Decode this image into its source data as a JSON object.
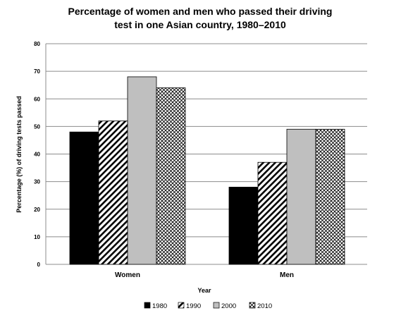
{
  "chart_data": {
    "type": "bar",
    "title_lines": [
      "Percentage of women and men who passed their driving",
      "test in one Asian country, 1980–2010"
    ],
    "xlabel": "Year",
    "ylabel": "Percentage (%) of driving tests passed",
    "categories": [
      "Women",
      "Men"
    ],
    "series": [
      {
        "name": "1980",
        "values": [
          48,
          28
        ],
        "fill": "solid-black"
      },
      {
        "name": "1990",
        "values": [
          52,
          37
        ],
        "fill": "diagonal-hatch"
      },
      {
        "name": "2000",
        "values": [
          68,
          49
        ],
        "fill": "light-gray"
      },
      {
        "name": "2010",
        "values": [
          64,
          49
        ],
        "fill": "crosshatch"
      }
    ],
    "ylim": [
      0,
      80
    ],
    "yticks": [
      0,
      10,
      20,
      30,
      40,
      50,
      60,
      70,
      80
    ],
    "grid": true,
    "legend_position": "bottom",
    "colors": {
      "bar_1980": "#000000",
      "bar_2000": "#bfbfbf",
      "grid": "#8c8c8c"
    }
  }
}
